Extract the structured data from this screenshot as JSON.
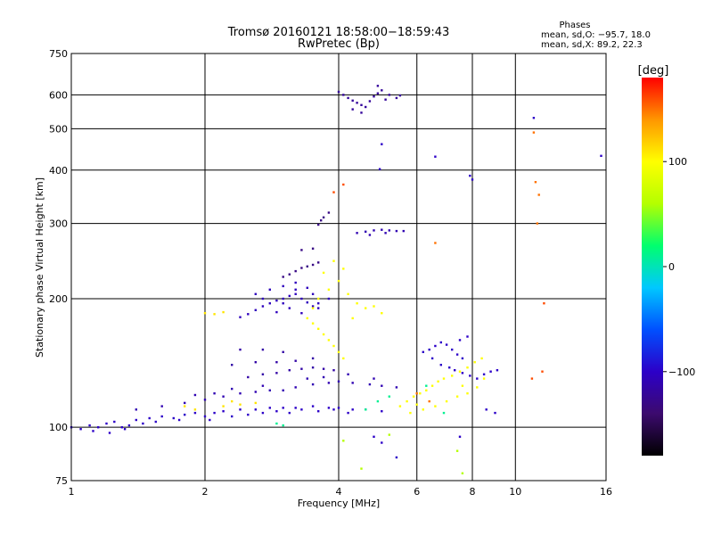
{
  "chart_data": {
    "type": "scatter",
    "title": "Tromsø 20160121 18:58:00−18:59:43",
    "subtitle": "RwPretec (Bp)",
    "xlabel": "Frequency [MHz]",
    "ylabel": "Stationary phase Virtual Height [km]",
    "xscale": "log",
    "yscale": "log",
    "xlim": [
      1,
      16
    ],
    "ylim": [
      75,
      750
    ],
    "grid": true,
    "x_ticks": [
      1,
      2,
      4,
      6,
      8,
      10,
      16
    ],
    "x_tick_labels": [
      "1",
      "2",
      "4",
      "6",
      "8",
      "10",
      "16"
    ],
    "y_ticks": [
      75,
      100,
      200,
      300,
      400,
      500,
      600,
      750
    ],
    "y_tick_labels": [
      "75",
      "100",
      "200",
      "300",
      "400",
      "500",
      "600",
      "750"
    ],
    "phase_stats": {
      "heading": "Phases",
      "line_o": "mean, sd,O: −95.7, 18.0",
      "line_x": "mean, sd,X:  89.2, 22.3"
    },
    "colorbar": {
      "label": "[deg]",
      "range": [
        -180,
        180
      ],
      "ticks": [
        "100",
        "0",
        "−100"
      ],
      "tick_values": [
        100,
        0,
        -100
      ],
      "colormap": [
        "#000000",
        "#3c0a6e",
        "#2c00c8",
        "#0050ff",
        "#00c8ff",
        "#00ff6e",
        "#b4ff00",
        "#ffff00",
        "#ff9600",
        "#ff0000"
      ]
    },
    "clusters": [
      {
        "phase": -100,
        "points": [
          [
            1.0,
            100
          ],
          [
            1.05,
            99
          ],
          [
            1.1,
            101
          ],
          [
            1.15,
            100
          ],
          [
            1.2,
            102
          ],
          [
            1.25,
            103
          ],
          [
            1.3,
            100
          ],
          [
            1.35,
            101
          ],
          [
            1.4,
            104
          ],
          [
            1.5,
            105
          ],
          [
            1.6,
            106
          ],
          [
            1.7,
            105
          ],
          [
            1.8,
            107
          ],
          [
            1.9,
            108
          ],
          [
            2.0,
            106
          ],
          [
            2.1,
            108
          ],
          [
            2.2,
            109
          ],
          [
            2.4,
            110
          ],
          [
            2.6,
            110
          ],
          [
            2.8,
            111
          ],
          [
            3.0,
            111
          ],
          [
            3.2,
            111
          ],
          [
            3.5,
            112
          ],
          [
            3.8,
            111
          ],
          [
            4.0,
            111
          ],
          [
            4.3,
            110
          ],
          [
            4.6,
            110
          ],
          [
            5.0,
            109
          ],
          [
            1.12,
            98
          ],
          [
            1.22,
            97
          ],
          [
            1.32,
            99
          ],
          [
            1.45,
            102
          ],
          [
            1.55,
            103
          ],
          [
            1.75,
            104
          ],
          [
            2.05,
            104
          ],
          [
            2.3,
            106
          ],
          [
            2.5,
            107
          ],
          [
            2.7,
            108
          ],
          [
            2.9,
            109
          ],
          [
            3.1,
            108
          ],
          [
            3.3,
            110
          ],
          [
            3.6,
            109
          ],
          [
            3.9,
            110
          ],
          [
            4.2,
            108
          ]
        ]
      },
      {
        "phase": -110,
        "points": [
          [
            1.4,
            110
          ],
          [
            1.6,
            112
          ],
          [
            1.8,
            114
          ],
          [
            2.0,
            116
          ],
          [
            2.2,
            118
          ],
          [
            2.4,
            120
          ],
          [
            2.6,
            121
          ],
          [
            2.8,
            122
          ],
          [
            3.0,
            122
          ],
          [
            3.2,
            124
          ],
          [
            3.5,
            126
          ],
          [
            3.8,
            127
          ],
          [
            4.0,
            128
          ],
          [
            4.3,
            127
          ],
          [
            4.7,
            126
          ],
          [
            5.0,
            125
          ],
          [
            5.4,
            124
          ],
          [
            1.9,
            119
          ],
          [
            2.1,
            120
          ],
          [
            2.3,
            123
          ],
          [
            2.7,
            125
          ],
          [
            3.4,
            130
          ],
          [
            3.7,
            131
          ],
          [
            4.2,
            133
          ],
          [
            4.8,
            130
          ]
        ]
      },
      {
        "phase": -115,
        "points": [
          [
            2.5,
            131
          ],
          [
            2.7,
            133
          ],
          [
            2.9,
            134
          ],
          [
            3.1,
            136
          ],
          [
            3.3,
            137
          ],
          [
            3.5,
            138
          ],
          [
            3.7,
            137
          ],
          [
            3.9,
            136
          ],
          [
            2.3,
            140
          ],
          [
            2.6,
            142
          ],
          [
            2.9,
            142
          ],
          [
            3.2,
            143
          ],
          [
            3.5,
            145
          ],
          [
            2.4,
            152
          ],
          [
            2.7,
            152
          ],
          [
            3.0,
            150
          ]
        ]
      },
      {
        "phase": -105,
        "points": [
          [
            2.4,
            181
          ],
          [
            2.5,
            184
          ],
          [
            2.6,
            188
          ],
          [
            2.7,
            192
          ],
          [
            2.8,
            195
          ],
          [
            2.9,
            198
          ],
          [
            3.0,
            200
          ],
          [
            3.1,
            203
          ],
          [
            3.2,
            205
          ],
          [
            3.3,
            200
          ],
          [
            3.4,
            196
          ],
          [
            3.5,
            192
          ],
          [
            3.6,
            190
          ],
          [
            2.6,
            205
          ],
          [
            2.8,
            210
          ],
          [
            3.0,
            214
          ],
          [
            3.2,
            218
          ],
          [
            3.4,
            212
          ],
          [
            2.9,
            186
          ],
          [
            3.1,
            190
          ],
          [
            3.3,
            185
          ],
          [
            3.6,
            195
          ],
          [
            3.8,
            200
          ],
          [
            2.7,
            200
          ],
          [
            3.0,
            195
          ],
          [
            3.2,
            210
          ],
          [
            3.5,
            205
          ]
        ]
      },
      {
        "phase": -130,
        "points": [
          [
            3.0,
            225
          ],
          [
            3.1,
            228
          ],
          [
            3.2,
            232
          ],
          [
            3.3,
            236
          ],
          [
            3.4,
            238
          ],
          [
            3.5,
            240
          ],
          [
            3.6,
            243
          ],
          [
            3.3,
            260
          ],
          [
            3.5,
            262
          ],
          [
            3.6,
            298
          ],
          [
            3.7,
            310
          ],
          [
            3.8,
            318
          ],
          [
            3.65,
            305
          ]
        ]
      },
      {
        "phase": -120,
        "points": [
          [
            4.0,
            610
          ],
          [
            4.1,
            600
          ],
          [
            4.2,
            590
          ],
          [
            4.3,
            582
          ],
          [
            4.4,
            575
          ],
          [
            4.5,
            568
          ],
          [
            4.6,
            562
          ],
          [
            4.7,
            580
          ],
          [
            4.8,
            595
          ],
          [
            4.9,
            605
          ],
          [
            5.0,
            615
          ],
          [
            5.2,
            600
          ],
          [
            5.4,
            590
          ],
          [
            5.5,
            598
          ],
          [
            4.3,
            555
          ],
          [
            4.5,
            545
          ],
          [
            4.9,
            630
          ],
          [
            5.1,
            585
          ]
        ]
      },
      {
        "phase": -110,
        "points": [
          [
            4.4,
            285
          ],
          [
            4.6,
            287
          ],
          [
            4.8,
            289
          ],
          [
            5.0,
            290
          ],
          [
            5.2,
            289
          ],
          [
            5.4,
            288
          ],
          [
            5.6,
            288
          ],
          [
            4.7,
            282
          ],
          [
            5.1,
            285
          ]
        ]
      },
      {
        "phase": -100,
        "points": [
          [
            6.2,
            150
          ],
          [
            6.4,
            152
          ],
          [
            6.6,
            155
          ],
          [
            6.8,
            158
          ],
          [
            7.0,
            156
          ],
          [
            7.2,
            152
          ],
          [
            7.4,
            148
          ],
          [
            7.6,
            145
          ],
          [
            6.8,
            140
          ],
          [
            7.1,
            138
          ],
          [
            7.3,
            136
          ],
          [
            7.6,
            134
          ],
          [
            7.9,
            132
          ],
          [
            8.2,
            130
          ],
          [
            8.5,
            133
          ],
          [
            8.8,
            135
          ],
          [
            9.1,
            136
          ],
          [
            6.5,
            145
          ],
          [
            7.5,
            160
          ],
          [
            7.8,
            163
          ]
        ]
      },
      {
        "phase": 100,
        "points": [
          [
            3.4,
            180
          ],
          [
            3.5,
            175
          ],
          [
            3.6,
            170
          ],
          [
            3.7,
            165
          ],
          [
            3.8,
            160
          ],
          [
            3.9,
            155
          ],
          [
            4.0,
            150
          ],
          [
            4.1,
            145
          ],
          [
            3.6,
            200
          ],
          [
            3.8,
            210
          ],
          [
            4.0,
            220
          ],
          [
            3.7,
            230
          ],
          [
            4.2,
            205
          ],
          [
            4.4,
            195
          ],
          [
            4.6,
            190
          ],
          [
            4.8,
            192
          ],
          [
            5.0,
            185
          ],
          [
            3.9,
            245
          ],
          [
            4.1,
            235
          ],
          [
            3.5,
            190
          ],
          [
            4.3,
            180
          ]
        ]
      },
      {
        "phase": 100,
        "points": [
          [
            5.5,
            112
          ],
          [
            5.7,
            115
          ],
          [
            5.9,
            118
          ],
          [
            6.1,
            120
          ],
          [
            6.3,
            122
          ],
          [
            6.5,
            125
          ],
          [
            6.7,
            128
          ],
          [
            6.9,
            130
          ],
          [
            7.2,
            132
          ],
          [
            7.5,
            135
          ],
          [
            7.8,
            138
          ],
          [
            8.1,
            142
          ],
          [
            8.4,
            145
          ],
          [
            6.2,
            110
          ],
          [
            6.6,
            112
          ],
          [
            7.0,
            115
          ],
          [
            7.4,
            118
          ],
          [
            7.8,
            120
          ],
          [
            8.2,
            124
          ],
          [
            8.5,
            130
          ],
          [
            5.8,
            108
          ],
          [
            6.0,
            113
          ],
          [
            7.6,
            125
          ]
        ]
      },
      {
        "phase": 110,
        "points": [
          [
            2.2,
            112
          ],
          [
            2.4,
            113
          ],
          [
            2.6,
            114
          ],
          [
            2.3,
            115
          ],
          [
            2.0,
            185
          ],
          [
            2.1,
            184
          ],
          [
            2.2,
            186
          ],
          [
            1.9,
            110
          ],
          [
            1.8,
            112
          ]
        ]
      },
      {
        "phase": 10,
        "points": [
          [
            2.9,
            102
          ],
          [
            3.0,
            101
          ],
          [
            4.6,
            110
          ],
          [
            4.9,
            115
          ],
          [
            5.2,
            118
          ],
          [
            6.3,
            125
          ],
          [
            6.9,
            108
          ]
        ]
      },
      {
        "phase": 150,
        "points": [
          [
            11.0,
            490
          ],
          [
            11.1,
            375
          ],
          [
            11.3,
            350
          ],
          [
            11.2,
            300
          ],
          [
            6.0,
            120
          ],
          [
            6.4,
            115
          ],
          [
            6.6,
            270
          ]
        ]
      },
      {
        "phase": -100,
        "points": [
          [
            4.95,
            402
          ],
          [
            5.0,
            460
          ],
          [
            7.9,
            388
          ],
          [
            8.0,
            380
          ],
          [
            6.6,
            430
          ],
          [
            15.6,
            432
          ],
          [
            11.0,
            530
          ],
          [
            8.6,
            110
          ],
          [
            9.0,
            108
          ],
          [
            7.5,
            95
          ],
          [
            5.0,
            92
          ],
          [
            5.4,
            85
          ],
          [
            4.8,
            95
          ]
        ]
      },
      {
        "phase": 160,
        "points": [
          [
            10.9,
            130
          ],
          [
            11.5,
            135
          ],
          [
            3.9,
            355
          ],
          [
            4.1,
            370
          ],
          [
            11.6,
            195
          ]
        ]
      },
      {
        "phase": 60,
        "points": [
          [
            4.1,
            93
          ],
          [
            5.2,
            96
          ],
          [
            7.4,
            88
          ],
          [
            7.6,
            78
          ],
          [
            4.5,
            80
          ]
        ]
      }
    ]
  }
}
